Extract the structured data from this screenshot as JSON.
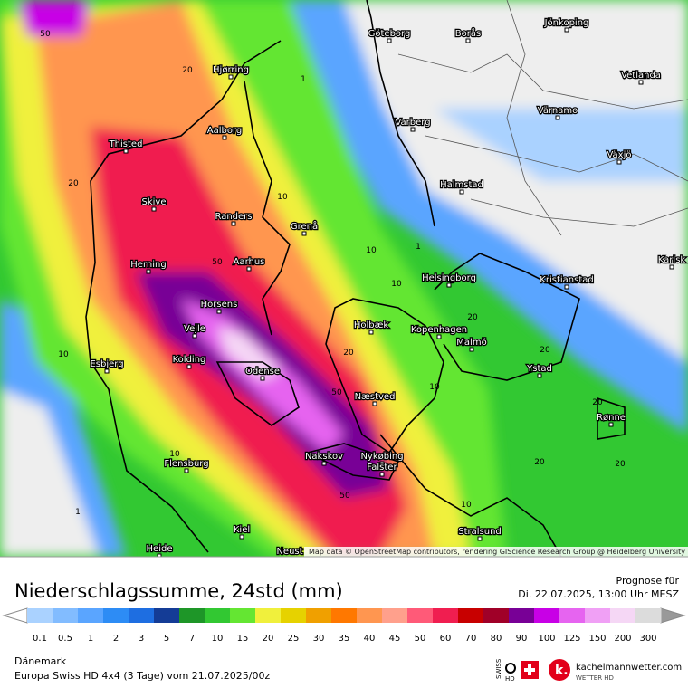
{
  "map": {
    "cities": [
      "Göteborg",
      "Borås",
      "Jönkoping",
      "Hjørring",
      "Vetlanda",
      "Aalborg",
      "Värnamo",
      "Varberg",
      "Thisted",
      "Växjö",
      "Skive",
      "Halmstad",
      "Randers",
      "Grenå",
      "Herning",
      "Aarhus",
      "Karlsk",
      "Helsingborg",
      "Kristianstad",
      "Horsens",
      "Holbæk",
      "Kopenhagen",
      "Vejle",
      "Malmö",
      "Esbjerg",
      "Kolding",
      "Ystad",
      "Odense",
      "Næstved",
      "Rønne",
      "Nakskov",
      "Nykøbing",
      "Falster",
      "Flensburg",
      "Stralsund",
      "Kiel",
      "Heide",
      "Neust"
    ],
    "contour_labels": [
      "50",
      "20",
      "1",
      "20",
      "10",
      "50",
      "10",
      "1",
      "10",
      "20",
      "20",
      "10",
      "50",
      "10",
      "20",
      "20",
      "20",
      "20",
      "50",
      "10",
      "1",
      "10"
    ],
    "attribution": "Map data © OpenStreetMap contributors, rendering GIScience Research Group @ Heidelberg University"
  },
  "header": {
    "title": "Niederschlagssumme, 24std (mm)",
    "forecast_label": "Prognose für",
    "forecast_date": "Di. 22.07.2025, 13:00 Uhr MESZ"
  },
  "legend": [
    {
      "label": "0.1",
      "color": "#aad2ff"
    },
    {
      "label": "0.5",
      "color": "#82bcff"
    },
    {
      "label": "1",
      "color": "#5aa5ff"
    },
    {
      "label": "2",
      "color": "#2d8cf5"
    },
    {
      "label": "3",
      "color": "#1e6ee1"
    },
    {
      "label": "5",
      "color": "#143c96"
    },
    {
      "label": "7",
      "color": "#1e9628"
    },
    {
      "label": "10",
      "color": "#32c832"
    },
    {
      "label": "15",
      "color": "#64e632"
    },
    {
      "label": "20",
      "color": "#f0f03c"
    },
    {
      "label": "25",
      "color": "#e6d200"
    },
    {
      "label": "30",
      "color": "#f0a000"
    },
    {
      "label": "35",
      "color": "#ff7800"
    },
    {
      "label": "40",
      "color": "#ff9650"
    },
    {
      "label": "45",
      "color": "#ffa08c"
    },
    {
      "label": "50",
      "color": "#ff5a78"
    },
    {
      "label": "60",
      "color": "#f01e50"
    },
    {
      "label": "70",
      "color": "#c80000"
    },
    {
      "label": "80",
      "color": "#a00028"
    },
    {
      "label": "90",
      "color": "#780096"
    },
    {
      "label": "100",
      "color": "#c800e6"
    },
    {
      "label": "125",
      "color": "#e664f0"
    },
    {
      "label": "150",
      "color": "#f0a0f5"
    },
    {
      "label": "200",
      "color": "#f5d7f5"
    },
    {
      "label": "300",
      "color": "#dcdcdc"
    }
  ],
  "footer": {
    "region": "Dänemark",
    "model": "Europa Swiss HD 4x4 (3 Tage) vom 21.07.2025/00z",
    "swiss": "SWISS",
    "hd": "HD",
    "brand": "kachelmannwetter.com",
    "brand_sub": "WETTER HD"
  }
}
